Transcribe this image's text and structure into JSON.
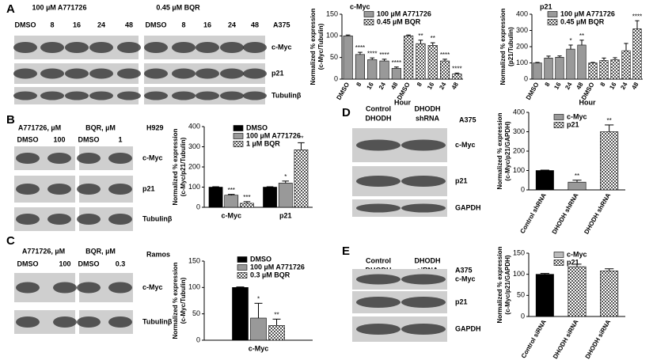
{
  "chart_data": [
    {
      "type": "bar",
      "title": "c-Myc",
      "xlabel": "Hour",
      "ylabel": [
        "Normalized % expression",
        "(c-Myc/Tubulin)"
      ],
      "categories": [
        "DMSO",
        "8",
        "16",
        "24",
        "48",
        "DMSO",
        "8",
        "16",
        "24",
        "48"
      ],
      "series": [
        {
          "name": "100 µM A771726",
          "color": "#999999",
          "values": [
            100,
            57,
            45,
            42,
            25,
            null,
            null,
            null,
            null,
            null
          ],
          "errors": [
            2,
            5,
            4,
            4,
            3,
            null,
            null,
            null,
            null,
            null
          ],
          "significance": [
            null,
            "****",
            "****",
            "****",
            "****",
            null,
            null,
            null,
            null,
            null
          ]
        },
        {
          "name": "0.45 µM BQR",
          "color": "checker",
          "values": [
            null,
            null,
            null,
            null,
            null,
            100,
            82,
            78,
            42,
            12
          ],
          "errors": [
            null,
            null,
            null,
            null,
            null,
            2,
            8,
            6,
            4,
            2
          ],
          "significance": [
            null,
            null,
            null,
            null,
            null,
            null,
            "**",
            "**",
            "****",
            "****"
          ]
        }
      ],
      "ylim": [
        0,
        150
      ],
      "yticks": [
        0,
        50,
        100,
        150
      ]
    },
    {
      "type": "bar",
      "title": "p21",
      "xlabel": "Hour",
      "ylabel": [
        "Normalized % expression",
        "(p21/Tubulin)"
      ],
      "categories": [
        "DMSO",
        "8",
        "16",
        "24",
        "48",
        "DMSO",
        "8",
        "16",
        "24",
        "48"
      ],
      "series": [
        {
          "name": "100 µM A771726",
          "color": "#999999",
          "values": [
            100,
            130,
            135,
            185,
            210,
            null,
            null,
            null,
            null,
            null
          ],
          "errors": [
            3,
            12,
            8,
            25,
            30,
            null,
            null,
            null,
            null,
            null
          ],
          "significance": [
            null,
            null,
            null,
            "*",
            "**",
            null,
            null,
            null,
            null,
            null
          ]
        },
        {
          "name": "0.45 µM BQR",
          "color": "checker",
          "values": [
            null,
            null,
            null,
            null,
            null,
            100,
            115,
            120,
            175,
            310
          ],
          "errors": [
            null,
            null,
            null,
            null,
            null,
            3,
            15,
            12,
            45,
            50
          ],
          "significance": [
            null,
            null,
            null,
            null,
            null,
            null,
            null,
            null,
            null,
            "****"
          ]
        }
      ],
      "ylim": [
        0,
        400
      ],
      "yticks": [
        0,
        100,
        200,
        300,
        400
      ]
    },
    {
      "type": "bar",
      "ylabel": [
        "Normalized % expression",
        "(c-Myc/p21/Tubulin)"
      ],
      "categories": [
        "c-Myc",
        "p21"
      ],
      "series": [
        {
          "name": "DMSO",
          "color": "#000000",
          "values": [
            100,
            100
          ],
          "errors": [
            2,
            2
          ],
          "significance": [
            null,
            null
          ]
        },
        {
          "name": "100 µM A771726",
          "color": "#999999",
          "values": [
            60,
            120
          ],
          "errors": [
            4,
            10
          ],
          "significance": [
            "***",
            "*"
          ]
        },
        {
          "name": "1 µM BQR",
          "color": "checker",
          "values": [
            20,
            285
          ],
          "errors": [
            8,
            35
          ],
          "significance": [
            "***",
            "**"
          ]
        }
      ],
      "ylim": [
        0,
        400
      ],
      "yticks": [
        0,
        100,
        200,
        300,
        400
      ]
    },
    {
      "type": "bar",
      "ylabel": [
        "Normalized % expression",
        "(c-Myc/Tubulin)"
      ],
      "categories": [
        "c-Myc"
      ],
      "series": [
        {
          "name": "DMSO",
          "color": "#000000",
          "values": [
            100
          ],
          "errors": [
            1
          ],
          "significance": [
            null
          ]
        },
        {
          "name": "100 µM A771726",
          "color": "#999999",
          "values": [
            42
          ],
          "errors": [
            28
          ],
          "significance": [
            "*"
          ]
        },
        {
          "name": "0.3 µM BQR",
          "color": "checker",
          "values": [
            28
          ],
          "errors": [
            12
          ],
          "significance": [
            "**"
          ]
        }
      ],
      "ylim": [
        0,
        150
      ],
      "yticks": [
        0,
        50,
        100,
        150
      ]
    },
    {
      "type": "bar",
      "ylabel": [
        "Normalized % expression",
        "(c-Myc/p21/GAPDH)"
      ],
      "categories": [
        "Control shRNA",
        "DHODH shRNA",
        "DHODH shRNA"
      ],
      "values": [
        100,
        40,
        300
      ],
      "errors": [
        2,
        10,
        35
      ],
      "colors": [
        "#000000",
        "#999999",
        "checker"
      ],
      "significance": [
        null,
        "**",
        "**"
      ],
      "legend": [
        {
          "name": "c-Myc",
          "color": "#999999"
        },
        {
          "name": "p21",
          "color": "checker"
        }
      ],
      "ylim": [
        0,
        400
      ],
      "yticks": [
        0,
        100,
        200,
        300,
        400
      ]
    },
    {
      "type": "bar",
      "ylabel": [
        "Normalized % expression",
        "(c-Myc/p21/GAPDH)"
      ],
      "categories": [
        "Control siRNA",
        "DHODH siRNA",
        "DHODH siRNA"
      ],
      "values": [
        100,
        118,
        108
      ],
      "errors": [
        2,
        6,
        5
      ],
      "colors": [
        "#000000",
        "checker",
        "checker"
      ],
      "significance": [
        null,
        null,
        null
      ],
      "legend": [
        {
          "name": "c-Myc",
          "color": "#bbbbbb"
        },
        {
          "name": "p21",
          "color": "checker"
        }
      ],
      "ylim": [
        0,
        150
      ],
      "yticks": [
        0,
        50,
        100,
        150
      ]
    }
  ],
  "blots": [
    {
      "letter": "A",
      "headers": [
        [
          "100 µM A771726"
        ],
        [
          "0.45 µM BQR"
        ]
      ],
      "lanes": [
        "DMSO",
        "8",
        "16",
        "24",
        "48",
        "DMSO",
        "8",
        "16",
        "24",
        "48"
      ],
      "cell": "A375",
      "rows": [
        "c-Myc",
        "p21",
        "Tubulinβ"
      ]
    },
    {
      "letter": "B",
      "headers": [
        [
          "A771726, µM"
        ],
        [
          "BQR, µM"
        ]
      ],
      "lanes": [
        "DMSO",
        "100",
        "DMSO",
        "1"
      ],
      "cell": "H929",
      "rows": [
        "c-Myc",
        "p21",
        "Tubulinβ"
      ]
    },
    {
      "letter": "C",
      "headers": [
        [
          "A771726, µM"
        ],
        [
          "BQR, µM"
        ]
      ],
      "lanes": [
        "DMSO",
        "100",
        "DMSO",
        "0.3"
      ],
      "cell": "Ramos",
      "rows": [
        "c-Myc",
        "Tubulinβ"
      ]
    },
    {
      "letter": "D",
      "headers": [
        [
          "Control",
          "DHODH"
        ],
        [
          "DHODH",
          "shRNA"
        ]
      ],
      "lanes": [],
      "cell": "A375",
      "rows": [
        "c-Myc",
        "p21",
        "GAPDH"
      ]
    },
    {
      "letter": "E",
      "headers": [
        [
          "Control",
          "DHODH"
        ],
        [
          "DHODH",
          "siRNA"
        ]
      ],
      "lanes": [],
      "cell": "A375",
      "rows": [
        "c-Myc",
        "p21",
        "GAPDH"
      ]
    }
  ]
}
